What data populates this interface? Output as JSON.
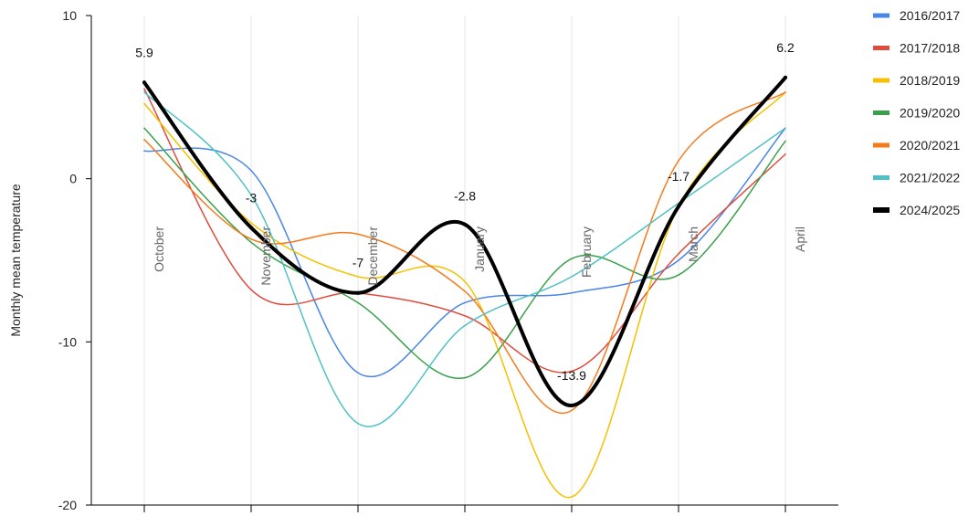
{
  "chart_data": {
    "type": "line",
    "title": "",
    "xlabel": "",
    "ylabel": "Monthly mean temperature",
    "ylim": [
      -20,
      10
    ],
    "yticks": [
      10,
      0,
      -10,
      -20
    ],
    "categories": [
      "October",
      "November",
      "December",
      "January",
      "February",
      "March",
      "April"
    ],
    "grid": "vertical",
    "legend_position": "right",
    "smooth": true,
    "series": [
      {
        "name": "2016/2017",
        "color": "#4a86e8",
        "values": [
          1.7,
          0.5,
          -11.9,
          -7.6,
          -7.0,
          -5.0,
          3.1
        ]
      },
      {
        "name": "2017/2018",
        "color": "#e04c3c",
        "values": [
          5.5,
          -6.8,
          -7.0,
          -8.4,
          -11.8,
          -4.6,
          1.5
        ]
      },
      {
        "name": "2018/2019",
        "color": "#f5c000",
        "values": [
          4.6,
          -2.7,
          -6.0,
          -6.3,
          -19.5,
          -1.7,
          5.3
        ]
      },
      {
        "name": "2019/2020",
        "color": "#3aa04b",
        "values": [
          3.1,
          -3.9,
          -7.6,
          -12.2,
          -4.9,
          -5.9,
          2.3
        ]
      },
      {
        "name": "2020/2021",
        "color": "#f47a1a",
        "values": [
          2.4,
          -3.7,
          -3.4,
          -6.9,
          -14.2,
          1.1,
          5.3
        ]
      },
      {
        "name": "2021/2022",
        "color": "#4fc1c6",
        "values": [
          5.3,
          -1.0,
          -15.0,
          -9.0,
          -6.0,
          -1.5,
          3.1
        ]
      },
      {
        "name": "2024/2025",
        "color": "#000000",
        "values": [
          5.9,
          -3.0,
          -7.0,
          -2.8,
          -13.9,
          -1.7,
          6.2
        ]
      }
    ],
    "data_labels": {
      "series": "2024/2025",
      "labels": [
        "5.9",
        "-3",
        "-7",
        "-2.8",
        "-13.9",
        "-1.7",
        "6.2"
      ]
    },
    "ytick_labels": [
      "10",
      "0",
      "-10",
      "-20"
    ]
  }
}
